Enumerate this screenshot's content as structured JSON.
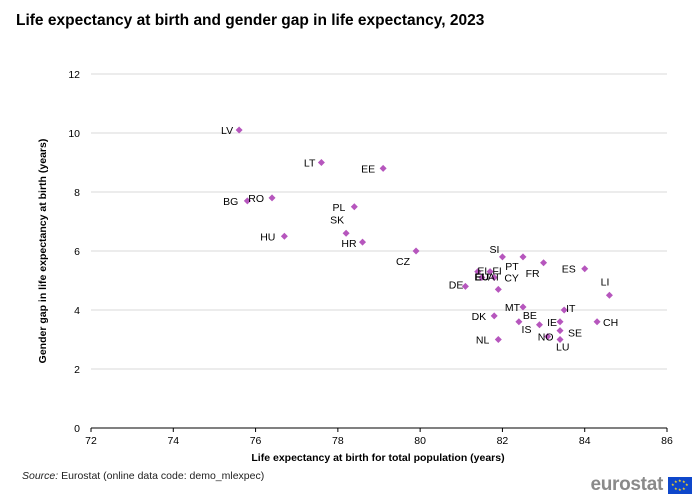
{
  "title": "Life expectancy at birth and gender gap in life expectancy, 2023",
  "source_label": "Source:",
  "source_text": "Eurostat (online data code: demo_mlexpec)",
  "logo_text": "eurostat",
  "chart_data": {
    "type": "scatter",
    "xlabel": "Life expectancy at birth for total population (years)",
    "ylabel": "Gender gap in life expectancy at birth (years)",
    "xlim": [
      72,
      86
    ],
    "ylim": [
      0,
      12
    ],
    "xticks": [
      72,
      74,
      76,
      78,
      80,
      82,
      84,
      86
    ],
    "yticks": [
      0,
      2,
      4,
      6,
      8,
      10,
      12
    ],
    "grid": "horizontal",
    "marker_color": "#b656bd",
    "points": [
      {
        "label": "LV",
        "x": 75.6,
        "y": 10.1
      },
      {
        "label": "LT",
        "x": 77.6,
        "y": 9.0
      },
      {
        "label": "EE",
        "x": 79.1,
        "y": 8.8
      },
      {
        "label": "RO",
        "x": 76.4,
        "y": 7.8
      },
      {
        "label": "BG",
        "x": 75.8,
        "y": 7.7
      },
      {
        "label": "PL",
        "x": 78.4,
        "y": 7.5
      },
      {
        "label": "SK",
        "x": 78.2,
        "y": 6.6
      },
      {
        "label": "HU",
        "x": 76.7,
        "y": 6.5
      },
      {
        "label": "HR",
        "x": 78.6,
        "y": 6.3
      },
      {
        "label": "CZ",
        "x": 79.9,
        "y": 6.0
      },
      {
        "label": "SI",
        "x": 82.0,
        "y": 5.8
      },
      {
        "label": "PT",
        "x": 82.5,
        "y": 5.8
      },
      {
        "label": "FR",
        "x": 83.0,
        "y": 5.6
      },
      {
        "label": "ES",
        "x": 84.0,
        "y": 5.4
      },
      {
        "label": "EL",
        "x": 81.4,
        "y": 5.3
      },
      {
        "label": "FI",
        "x": 81.7,
        "y": 5.3
      },
      {
        "label": "EU",
        "x": 81.5,
        "y": 5.1
      },
      {
        "label": "AT",
        "x": 81.8,
        "y": 5.1
      },
      {
        "label": "DE",
        "x": 81.1,
        "y": 4.8
      },
      {
        "label": "LI",
        "x": 84.6,
        "y": 4.5
      },
      {
        "label": "CY",
        "x": 81.9,
        "y": 4.7
      },
      {
        "label": "MT",
        "x": 82.5,
        "y": 4.1
      },
      {
        "label": "IT",
        "x": 83.5,
        "y": 4.0
      },
      {
        "label": "DK",
        "x": 81.8,
        "y": 3.8
      },
      {
        "label": "BE",
        "x": 82.4,
        "y": 3.6
      },
      {
        "label": "IS",
        "x": 82.9,
        "y": 3.5
      },
      {
        "label": "IE",
        "x": 83.4,
        "y": 3.6
      },
      {
        "label": "CH",
        "x": 84.3,
        "y": 3.6
      },
      {
        "label": "NO",
        "x": 83.1,
        "y": 3.1
      },
      {
        "label": "SE",
        "x": 83.4,
        "y": 3.3
      },
      {
        "label": "NL",
        "x": 81.9,
        "y": 3.0
      },
      {
        "label": "LU",
        "x": 83.4,
        "y": 3.0
      }
    ]
  }
}
